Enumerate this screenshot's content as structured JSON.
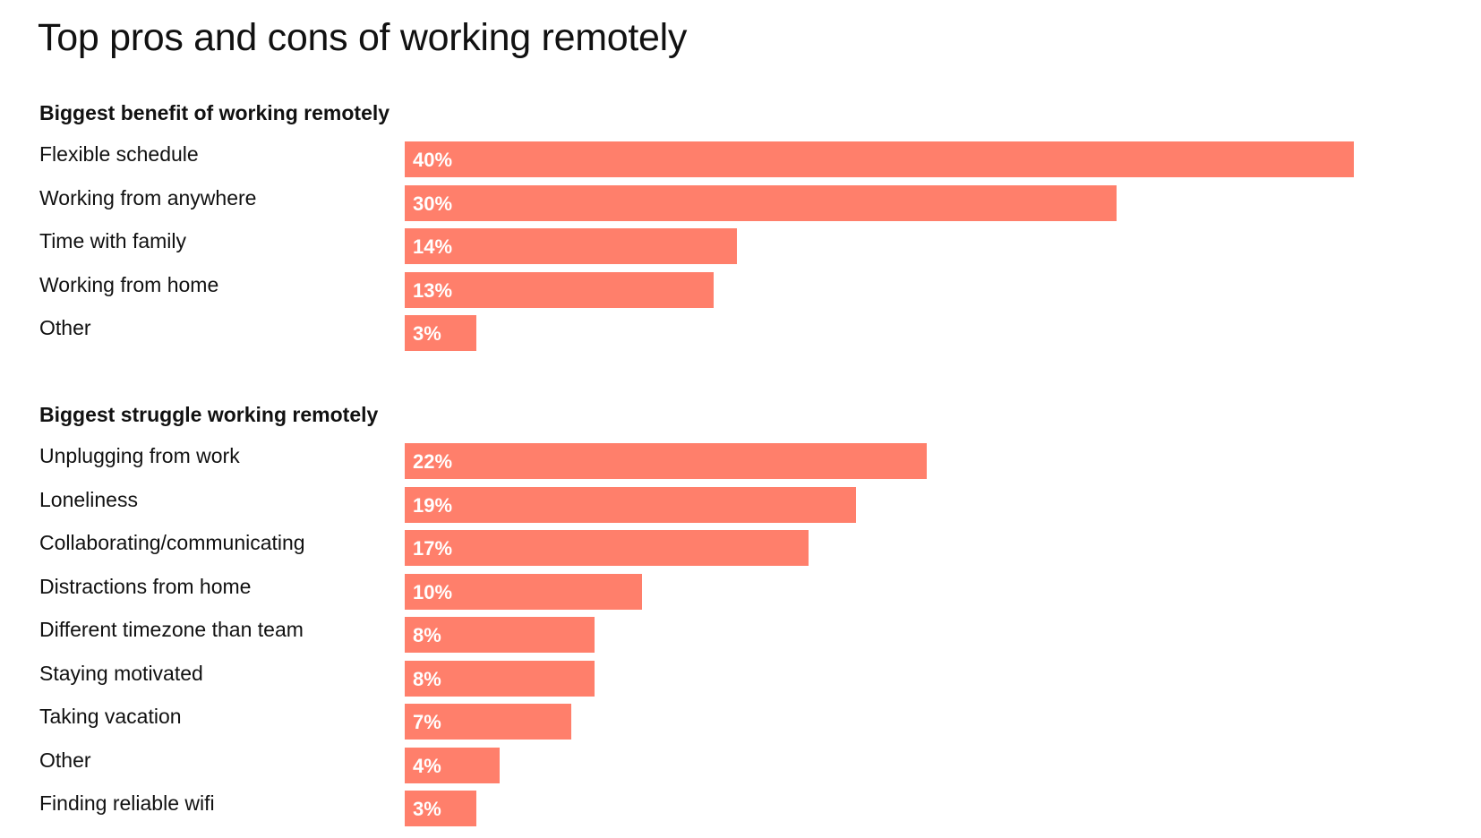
{
  "title": "Top pros and cons of working remotely",
  "colors": {
    "bar": "#ff7f6b",
    "text": "#111111",
    "value_text": "#ffffff"
  },
  "chart_data": [
    {
      "type": "bar",
      "orientation": "horizontal",
      "title": "Biggest benefit of working remotely",
      "categories": [
        "Flexible schedule",
        "Working from anywhere",
        "Time with family",
        "Working from home",
        "Other"
      ],
      "values": [
        40,
        30,
        14,
        13,
        3
      ],
      "value_labels": [
        "40%",
        "30%",
        "14%",
        "13%",
        "3%"
      ],
      "xlim": [
        0,
        40
      ],
      "grid": false
    },
    {
      "type": "bar",
      "orientation": "horizontal",
      "title": "Biggest struggle working remotely",
      "categories": [
        "Unplugging from work",
        "Loneliness",
        "Collaborating/communicating",
        "Distractions from home",
        "Different timezone than team",
        "Staying motivated",
        "Taking vacation",
        "Other",
        "Finding reliable wifi"
      ],
      "values": [
        22,
        19,
        17,
        10,
        8,
        8,
        7,
        4,
        3
      ],
      "value_labels": [
        "22%",
        "19%",
        "17%",
        "10%",
        "8%",
        "8%",
        "7%",
        "4%",
        "3%"
      ],
      "xlim": [
        0,
        40
      ],
      "grid": false
    }
  ]
}
